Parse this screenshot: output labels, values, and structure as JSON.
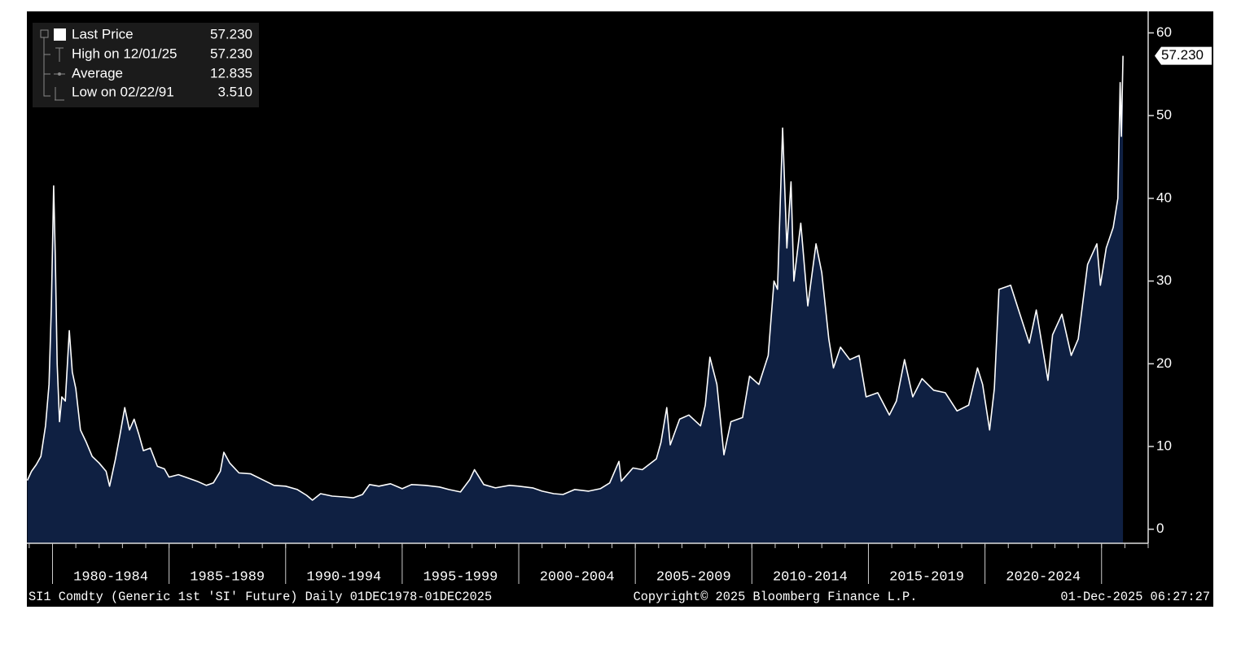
{
  "chart_data": {
    "type": "area",
    "stats": {
      "labels": [
        "Last Price",
        "High on 12/01/25",
        "Average",
        "Low on 02/22/91"
      ],
      "values": [
        57.23,
        57.23,
        12.835,
        3.51
      ],
      "value_labels": [
        "57.230",
        "57.230",
        "12.835",
        "3.510"
      ]
    },
    "series": [
      {
        "name": "Last Price",
        "color": "#ffffff",
        "fill": "#0f2042",
        "x": [
          1978.92,
          1979.1,
          1979.3,
          1979.5,
          1979.7,
          1979.85,
          1979.95,
          1980.05,
          1980.12,
          1980.2,
          1980.3,
          1980.4,
          1980.55,
          1980.72,
          1980.85,
          1981.0,
          1981.2,
          1981.45,
          1981.7,
          1982.0,
          1982.3,
          1982.45,
          1982.7,
          1982.9,
          1983.1,
          1983.3,
          1983.5,
          1983.7,
          1983.9,
          1984.2,
          1984.5,
          1984.8,
          1985.0,
          1985.4,
          1985.8,
          1986.2,
          1986.6,
          1986.9,
          1987.2,
          1987.35,
          1987.6,
          1988.0,
          1988.5,
          1989.0,
          1989.5,
          1990.0,
          1990.5,
          1990.9,
          1991.15,
          1991.5,
          1992.0,
          1992.5,
          1992.9,
          1993.3,
          1993.6,
          1994.0,
          1994.5,
          1995.0,
          1995.4,
          1996.0,
          1996.6,
          1997.0,
          1997.5,
          1997.9,
          1998.1,
          1998.5,
          1999.0,
          1999.6,
          2000.0,
          2000.6,
          2001.0,
          2001.5,
          2001.9,
          2002.4,
          2003.0,
          2003.5,
          2003.9,
          2004.3,
          2004.4,
          2004.9,
          2005.3,
          2005.9,
          2006.1,
          2006.35,
          2006.5,
          2006.9,
          2007.3,
          2007.8,
          2008.0,
          2008.2,
          2008.5,
          2008.8,
          2009.1,
          2009.6,
          2009.9,
          2010.3,
          2010.7,
          2010.95,
          2011.1,
          2011.32,
          2011.5,
          2011.68,
          2011.8,
          2012.1,
          2012.4,
          2012.75,
          2013.0,
          2013.3,
          2013.5,
          2013.8,
          2014.2,
          2014.6,
          2014.9,
          2015.4,
          2015.9,
          2016.2,
          2016.55,
          2016.9,
          2017.3,
          2017.8,
          2018.3,
          2018.8,
          2019.3,
          2019.68,
          2019.9,
          2020.2,
          2020.4,
          2020.6,
          2021.1,
          2021.5,
          2021.9,
          2022.2,
          2022.7,
          2022.9,
          2023.3,
          2023.7,
          2024.0,
          2024.4,
          2024.8,
          2024.95,
          2025.2,
          2025.5,
          2025.7,
          2025.8,
          2025.85,
          2025.92
        ],
        "values": [
          5.9,
          7.0,
          7.8,
          8.8,
          12.5,
          17.5,
          27,
          41.5,
          33,
          20,
          13,
          16,
          15.5,
          24,
          19,
          17,
          12,
          10.5,
          8.8,
          8.0,
          7.0,
          5.2,
          8.5,
          11.5,
          14.7,
          12,
          13.3,
          11.5,
          9.5,
          9.8,
          7.6,
          7.3,
          6.3,
          6.6,
          6.2,
          5.8,
          5.3,
          5.6,
          7.0,
          9.3,
          8.0,
          6.8,
          6.7,
          6.0,
          5.3,
          5.2,
          4.8,
          4.1,
          3.51,
          4.3,
          4.0,
          3.9,
          3.8,
          4.2,
          5.4,
          5.2,
          5.5,
          4.9,
          5.4,
          5.3,
          5.1,
          4.8,
          4.5,
          6.0,
          7.2,
          5.4,
          5.0,
          5.3,
          5.2,
          5.0,
          4.6,
          4.3,
          4.2,
          4.8,
          4.6,
          4.9,
          5.6,
          8.2,
          5.8,
          7.4,
          7.2,
          8.5,
          10.5,
          14.7,
          10.2,
          13.3,
          13.8,
          12.5,
          15,
          20.8,
          17.5,
          9.0,
          13,
          13.5,
          18.5,
          17.5,
          21,
          30,
          29,
          48.5,
          34,
          42,
          30,
          37,
          27,
          34.5,
          31,
          23,
          19.5,
          22,
          20.5,
          21,
          16,
          16.5,
          13.8,
          15.5,
          20.5,
          16,
          18.2,
          16.8,
          16.5,
          14.3,
          15.0,
          19.5,
          17.5,
          12,
          17,
          29,
          29.5,
          26,
          22.5,
          26.5,
          18,
          23.5,
          26,
          21,
          23,
          32,
          34.5,
          29.5,
          34,
          36.5,
          40,
          54,
          47.5,
          57.23
        ]
      }
    ],
    "xlim": [
      1978.9,
      2027.0
    ],
    "xperiods": [
      {
        "start": 1980,
        "end": 1985,
        "label": "1980-1984"
      },
      {
        "start": 1985,
        "end": 1990,
        "label": "1985-1989"
      },
      {
        "start": 1990,
        "end": 1995,
        "label": "1990-1994"
      },
      {
        "start": 1995,
        "end": 2000,
        "label": "1995-1999"
      },
      {
        "start": 2000,
        "end": 2005,
        "label": "2000-2004"
      },
      {
        "start": 2005,
        "end": 2010,
        "label": "2005-2009"
      },
      {
        "start": 2010,
        "end": 2015,
        "label": "2010-2014"
      },
      {
        "start": 2015,
        "end": 2020,
        "label": "2015-2019"
      },
      {
        "start": 2020,
        "end": 2025,
        "label": "2020-2024"
      }
    ],
    "xminor_step": 1,
    "ylim": [
      -1.7,
      62.6
    ],
    "yticks": [
      0,
      10,
      20,
      30,
      40,
      50,
      60
    ],
    "footer": {
      "source": "SI1 Comdty (Generic 1st 'SI' Future) Daily 01DEC1978-01DEC2025",
      "copyright": "Copyright© 2025 Bloomberg Finance L.P.",
      "timestamp": "01-Dec-2025 06:27:27"
    }
  }
}
